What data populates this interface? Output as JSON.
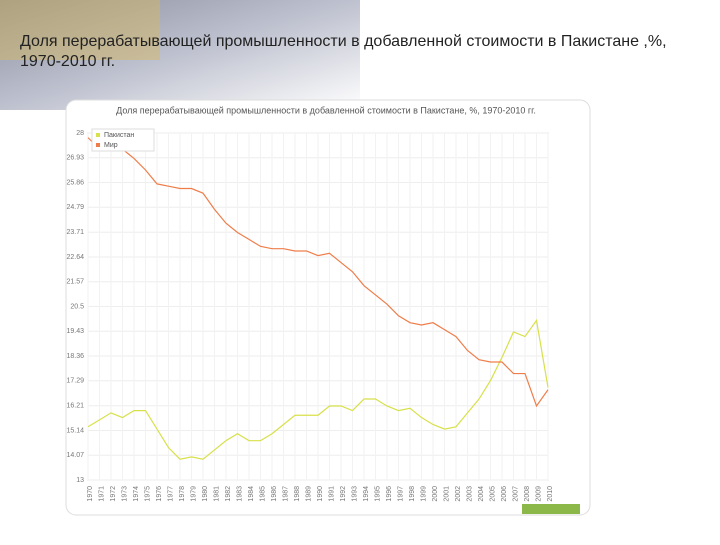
{
  "slide_title": "Доля перерабатывающей промышленности в добавленной стоимости в Пакистане ,%, 1970-2010 гг.",
  "chart_data": {
    "type": "line",
    "title": "Доля перерабатывающей промышленности в добавленной стоимости в Пакистане, %, 1970-2010 гг.",
    "categories": [
      "1970",
      "1971",
      "1972",
      "1973",
      "1974",
      "1975",
      "1976",
      "1977",
      "1978",
      "1979",
      "1980",
      "1981",
      "1982",
      "1983",
      "1984",
      "1985",
      "1986",
      "1987",
      "1988",
      "1989",
      "1990",
      "1991",
      "1992",
      "1993",
      "1994",
      "1995",
      "1996",
      "1997",
      "1998",
      "1999",
      "2000",
      "2001",
      "2002",
      "2003",
      "2004",
      "2005",
      "2006",
      "2007",
      "2008",
      "2009",
      "2010"
    ],
    "series": [
      {
        "name": "Пакистан",
        "color": "#d8e04a",
        "values": [
          15.3,
          15.6,
          15.9,
          15.7,
          16.0,
          16.0,
          15.2,
          14.4,
          13.9,
          14.0,
          13.9,
          14.3,
          14.7,
          15.0,
          14.7,
          14.7,
          15.0,
          15.4,
          15.8,
          15.8,
          15.8,
          16.2,
          16.2,
          16.0,
          16.5,
          16.5,
          16.2,
          16.0,
          16.1,
          15.7,
          15.4,
          15.2,
          15.3,
          15.9,
          16.5,
          17.3,
          18.3,
          19.4,
          19.2,
          19.9,
          17.0
        ]
      },
      {
        "name": "Мир",
        "color": "#ef7d4a",
        "values": [
          27.8,
          27.3,
          27.3,
          27.3,
          26.9,
          26.4,
          25.8,
          25.7,
          25.6,
          25.6,
          25.4,
          24.7,
          24.1,
          23.7,
          23.4,
          23.1,
          23.0,
          23.0,
          22.9,
          22.9,
          22.7,
          22.8,
          22.4,
          22.0,
          21.4,
          21.0,
          20.6,
          20.1,
          19.8,
          19.7,
          19.8,
          19.5,
          19.2,
          18.6,
          18.2,
          18.1,
          18.1,
          17.6,
          17.6,
          16.2,
          16.9
        ]
      }
    ],
    "ylim": [
      13,
      28
    ],
    "yticks": [
      13,
      14.07,
      15.14,
      16.21,
      17.29,
      18.36,
      19.43,
      20.5,
      21.57,
      22.64,
      23.71,
      24.79,
      25.86,
      26.93,
      28
    ],
    "grid": true,
    "legend": "top-left"
  }
}
